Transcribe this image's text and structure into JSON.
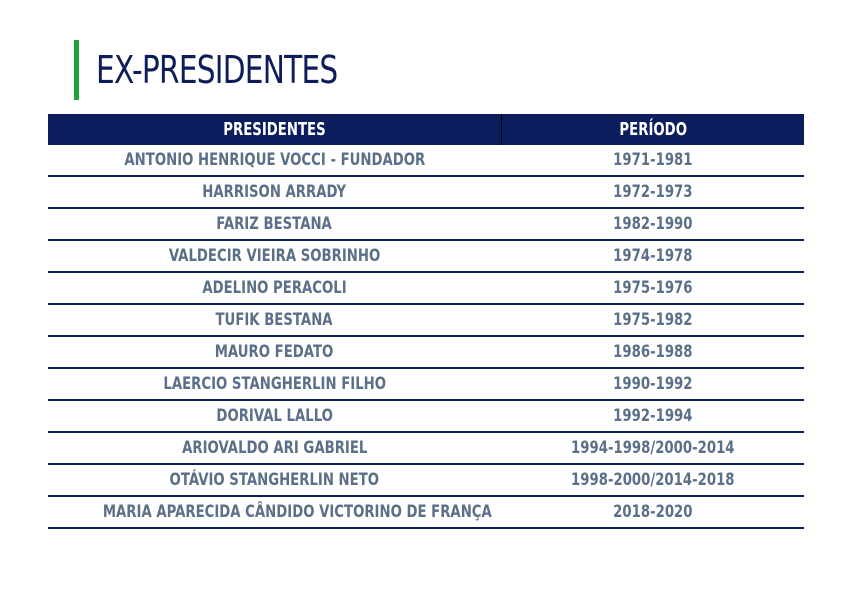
{
  "page": {
    "title": "EX-PRESIDENTES",
    "accent_color": "#1fa23a",
    "header_color": "#0b1d5c",
    "text_color": "#5b6f88"
  },
  "table": {
    "headers": [
      "PRESIDENTES",
      "PERÍODO"
    ],
    "rows": [
      {
        "name": "ANTONIO HENRIQUE VOCCI - FUNDADOR",
        "period": "1971-1981"
      },
      {
        "name": "HARRISON ARRADY",
        "period": "1972-1973"
      },
      {
        "name": "FARIZ BESTANA",
        "period": "1982-1990"
      },
      {
        "name": "VALDECIR VIEIRA SOBRINHO",
        "period": "1974-1978"
      },
      {
        "name": "ADELINO PERACOLI",
        "period": "1975-1976"
      },
      {
        "name": "TUFIK BESTANA",
        "period": "1975-1982"
      },
      {
        "name": "MAURO FEDATO",
        "period": "1986-1988"
      },
      {
        "name": "LAERCIO STANGHERLIN FILHO",
        "period": "1990-1992"
      },
      {
        "name": "DORIVAL LALLO",
        "period": "1992-1994"
      },
      {
        "name": "ARIOVALDO ARI GABRIEL",
        "period": "1994-1998/2000-2014"
      },
      {
        "name": "OTÁVIO STANGHERLIN NETO",
        "period": "1998-2000/2014-2018"
      },
      {
        "name": "MARIA APARECIDA CÂNDIDO VICTORINO DE FRANÇA",
        "period": "2018-2020"
      }
    ]
  }
}
